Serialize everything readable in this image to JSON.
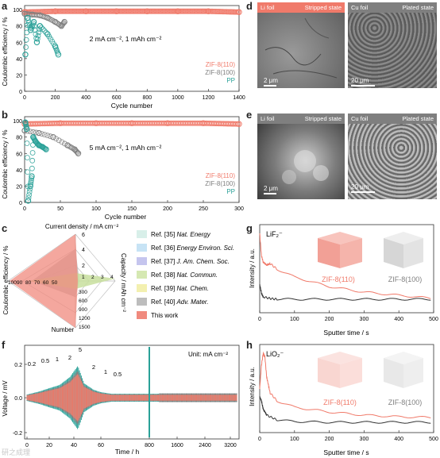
{
  "panels": {
    "a": {
      "letter": "a",
      "ylabel": "Coulombic efficiency / %",
      "xlabel": "Cycle number",
      "annotation": "2  mA cm⁻², 1  mAh cm⁻²",
      "legend": [
        "ZIF-8(110)",
        "ZIF-8(100)",
        "PP"
      ],
      "xticks": [
        "0",
        "200",
        "400",
        "600",
        "800",
        "1000",
        "1200",
        "1400"
      ],
      "yticks": [
        "0",
        "20",
        "40",
        "60",
        "80",
        "100"
      ]
    },
    "b": {
      "letter": "b",
      "ylabel": "Coulombic efficiency / %",
      "xlabel": "Cycle number",
      "annotation": "5  mA cm⁻², 1  mAh cm⁻²",
      "legend": [
        "ZIF-8(110)",
        "ZIF-8(100)",
        "PP"
      ],
      "xticks": [
        "0",
        "50",
        "100",
        "150",
        "200",
        "250",
        "300"
      ],
      "yticks": [
        "0",
        "20",
        "40",
        "60",
        "80",
        "100"
      ]
    },
    "c": {
      "letter": "c",
      "axis_top": "Current density / mA cm⁻²",
      "axis_left": "Coulombic efficiency / %",
      "axis_right": "Capacity / mAh cm⁻²",
      "axis_bottom": "Number",
      "top_ticks": [
        "6",
        "4",
        "2"
      ],
      "left_ticks": [
        "100",
        "90",
        "80",
        "70",
        "60",
        "50"
      ],
      "right_ticks": [
        "1",
        "2",
        "3",
        "4"
      ],
      "bottom_ticks": [
        "300",
        "600",
        "900",
        "1200",
        "1500"
      ],
      "legend": [
        {
          "ref": "Ref. [35]",
          "journal": "Nat. Energy",
          "color": "#d8efe9"
        },
        {
          "ref": "Ref. [36]",
          "journal": "Energy Environ. Sci.",
          "color": "#c7e3f5"
        },
        {
          "ref": "Ref. [37]",
          "journal": "J. Am. Chem. Soc.",
          "color": "#c5c5ee"
        },
        {
          "ref": "Ref. [38]",
          "journal": "Nat. Commun.",
          "color": "#d5e8b2"
        },
        {
          "ref": "Ref. [39]",
          "journal": "Nat. Chem.",
          "color": "#f3f0b0"
        },
        {
          "ref": "Ref. [40]",
          "journal": "Adv. Mater.",
          "color": "#bdbdbd"
        },
        {
          "ref": "This work",
          "journal": "",
          "color": "#f08a7e"
        }
      ]
    },
    "d": {
      "letter": "d",
      "left_title": "Li foil",
      "left_state": "Stripped state",
      "right_title": "Cu foil",
      "right_state": "Plated state",
      "left_scale": "2 μm",
      "right_scale": "20 μm"
    },
    "e": {
      "letter": "e",
      "left_title": "Li foil",
      "left_state": "Stripped state",
      "right_title": "Cu foil",
      "right_state": "Plated state",
      "left_scale": "2 μm",
      "right_scale": "20 μm"
    },
    "f": {
      "letter": "f",
      "ylabel": "Voltage / mV",
      "xlabel": "Time / h",
      "unit": "Unit: mA cm⁻²",
      "rate_labels": [
        "0.2",
        "0.5",
        "1",
        "2",
        "5",
        "2",
        "1",
        "0.5"
      ],
      "xticks": [
        "0",
        "20",
        "40",
        "60",
        "800",
        "1600",
        "2400",
        "3200"
      ],
      "yticks": [
        "-0.2",
        "0.0",
        "0.2"
      ]
    },
    "g": {
      "letter": "g",
      "species": "LiF₂⁻",
      "ylabel": "Intensity / a.u.",
      "xlabel": "Sputter time / s",
      "label_110": "ZIF-8(110)",
      "label_100": "ZIF-8(100)",
      "xticks": [
        "0",
        "100",
        "200",
        "300",
        "400",
        "500"
      ]
    },
    "h": {
      "letter": "h",
      "species": "LiO₂⁻",
      "ylabel": "Intensity / a.u.",
      "xlabel": "Sputter time / s",
      "label_110": "ZIF-8(110)",
      "label_100": "ZIF-8(100)",
      "xticks": [
        "0",
        "100",
        "200",
        "300",
        "400",
        "500"
      ]
    }
  },
  "colors": {
    "zif110": "#f07a6a",
    "zif100": "#7f7f7f",
    "pp": "#2aa198",
    "dark": "#333333"
  },
  "watermark": "研之成理",
  "chart_data": [
    {
      "id": "a",
      "type": "scatter",
      "xlim": [
        0,
        1400
      ],
      "ylim": [
        0,
        105
      ],
      "series": [
        {
          "name": "ZIF-8(110)",
          "x": [
            0,
            200,
            400,
            600,
            800,
            1000,
            1200,
            1400
          ],
          "y": [
            97,
            98,
            98,
            98,
            98,
            98,
            98,
            97
          ]
        },
        {
          "name": "ZIF-8(100)",
          "x": [
            0,
            50,
            100,
            150,
            200,
            240,
            260
          ],
          "y": [
            95,
            94,
            93,
            90,
            85,
            80,
            85
          ]
        },
        {
          "name": "PP",
          "x": [
            5,
            20,
            40,
            60,
            80,
            100,
            150,
            200,
            220
          ],
          "y": [
            45,
            90,
            75,
            85,
            60,
            80,
            70,
            55,
            45
          ]
        }
      ]
    },
    {
      "id": "b",
      "type": "scatter",
      "xlim": [
        0,
        300
      ],
      "ylim": [
        0,
        105
      ],
      "series": [
        {
          "name": "ZIF-8(110)",
          "x": [
            0,
            50,
            100,
            150,
            200,
            250,
            300
          ],
          "y": [
            96,
            97,
            97,
            97,
            97,
            97,
            96
          ]
        },
        {
          "name": "ZIF-8(100)",
          "x": [
            0,
            20,
            40,
            60,
            70,
            75
          ],
          "y": [
            88,
            85,
            80,
            70,
            65,
            60
          ]
        },
        {
          "name": "PP",
          "x": [
            1,
            3,
            5,
            8,
            10,
            12,
            15,
            20,
            25,
            30
          ],
          "y": [
            98,
            90,
            2,
            20,
            32,
            80,
            75,
            70,
            68,
            65
          ]
        }
      ]
    },
    {
      "id": "c",
      "type": "radar",
      "axes": [
        "Current density",
        "Capacity",
        "Number",
        "Coulombic efficiency"
      ],
      "series": [
        {
          "name": "This work",
          "values": [
            6,
            1,
            1500,
            99
          ]
        },
        {
          "name": "Ref. [40]",
          "values": [
            2,
            1,
            300,
            98
          ]
        },
        {
          "name": "Ref. [38]",
          "values": [
            1,
            4,
            200,
            96
          ]
        }
      ]
    },
    {
      "id": "g",
      "type": "line",
      "xlim": [
        0,
        500
      ],
      "series": [
        {
          "name": "ZIF-8(110)",
          "x": [
            0,
            5,
            10,
            20,
            30,
            50,
            100,
            200,
            300,
            400,
            500
          ],
          "y": [
            1.0,
            0.72,
            0.64,
            0.6,
            0.62,
            0.55,
            0.45,
            0.33,
            0.26,
            0.22,
            0.18
          ]
        },
        {
          "name": "ZIF-8(100)",
          "x": [
            0,
            5,
            10,
            30,
            50,
            100,
            200,
            300,
            400,
            500
          ],
          "y": [
            0.35,
            0.25,
            0.2,
            0.18,
            0.17,
            0.17,
            0.17,
            0.17,
            0.17,
            0.17
          ]
        }
      ]
    },
    {
      "id": "h",
      "type": "line",
      "xlim": [
        0,
        500
      ],
      "series": [
        {
          "name": "ZIF-8(110)",
          "x": [
            0,
            5,
            10,
            15,
            20,
            30,
            50,
            100,
            200,
            300,
            400,
            500
          ],
          "y": [
            0.55,
            0.85,
            1.0,
            0.95,
            0.7,
            0.5,
            0.4,
            0.32,
            0.26,
            0.22,
            0.2,
            0.19
          ]
        },
        {
          "name": "ZIF-8(100)",
          "x": [
            0,
            5,
            10,
            20,
            50,
            100,
            200,
            300,
            400,
            500
          ],
          "y": [
            0.45,
            0.4,
            0.3,
            0.22,
            0.16,
            0.14,
            0.13,
            0.13,
            0.13,
            0.13
          ]
        }
      ]
    }
  ]
}
